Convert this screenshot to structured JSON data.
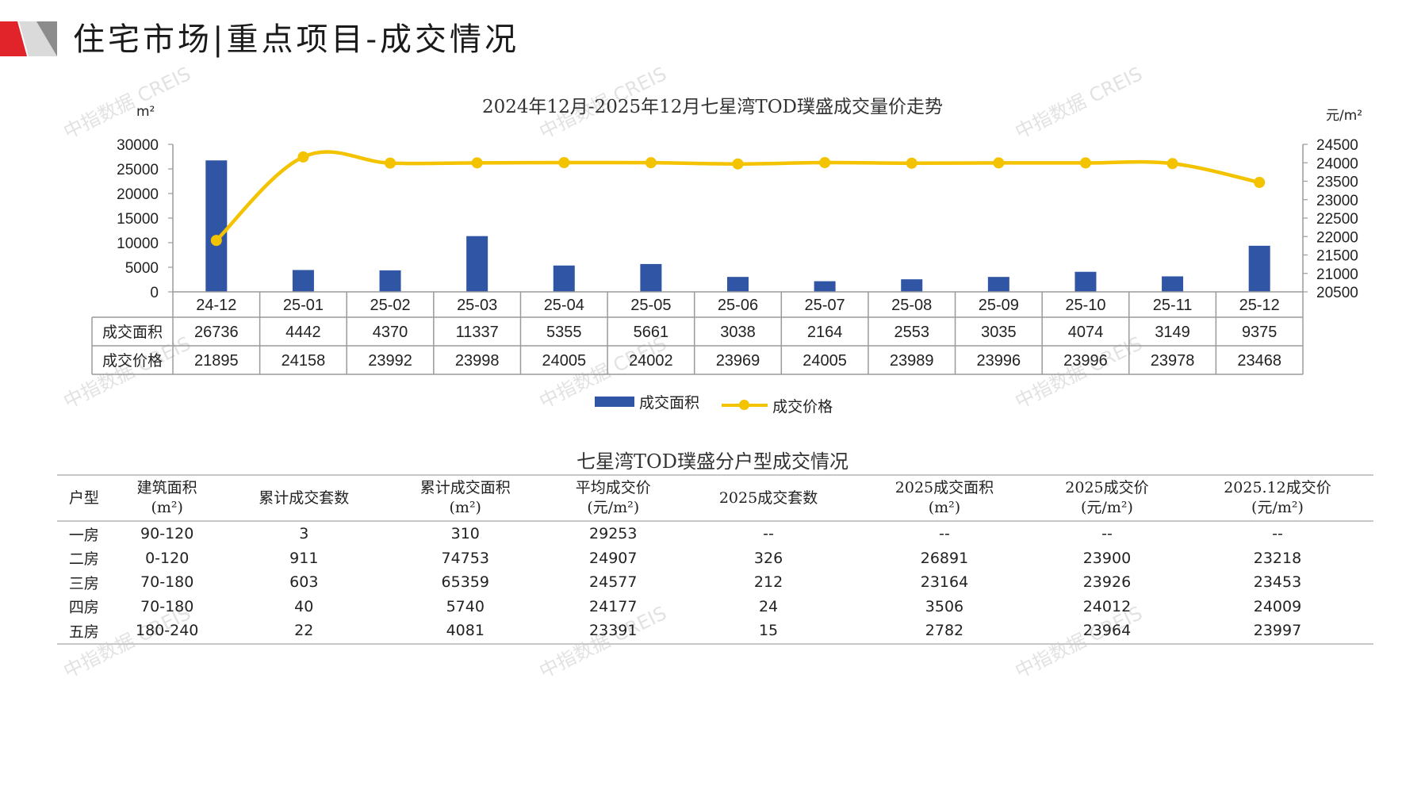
{
  "header": {
    "title": "住宅市场|重点项目-成交情况"
  },
  "watermark": "中指数据 CREIS",
  "colors": {
    "bar": "#2F55A4",
    "line": "#F4C300",
    "accent_red": "#E0242A",
    "accent_gray": "#8C8C8C"
  },
  "chart_data": {
    "type": "bar",
    "title": "2024年12月-2025年12月七星湾TOD璞盛成交量价走势",
    "categories": [
      "24-12",
      "25-01",
      "25-02",
      "25-03",
      "25-04",
      "25-05",
      "25-06",
      "25-07",
      "25-08",
      "25-09",
      "25-10",
      "25-11",
      "25-12"
    ],
    "series": [
      {
        "name": "成交面积",
        "type": "bar",
        "axis": "left",
        "values": [
          26736,
          4442,
          4370,
          11337,
          5355,
          5661,
          3038,
          2164,
          2553,
          3035,
          4074,
          3149,
          9375
        ]
      },
      {
        "name": "成交价格",
        "type": "line",
        "axis": "right",
        "values": [
          21895,
          24158,
          23992,
          23998,
          24005,
          24002,
          23969,
          24005,
          23989,
          23996,
          23996,
          23978,
          23468
        ]
      }
    ],
    "y_left": {
      "unit": "m²",
      "range": [
        0,
        30000
      ],
      "ticks": [
        "30000",
        "25000",
        "20000",
        "15000",
        "10000",
        "5000",
        "0"
      ]
    },
    "y_right": {
      "unit": "元/m²",
      "range": [
        20500,
        24500
      ],
      "ticks": [
        "24500",
        "24000",
        "23500",
        "23000",
        "22500",
        "22000",
        "21500",
        "21000",
        "20500"
      ]
    },
    "legend_position": "bottom",
    "data_table": true
  },
  "type_table": {
    "title": "七星湾TOD璞盛分户型成交情况",
    "headers": [
      [
        "户型",
        ""
      ],
      [
        "建筑面积",
        "(m²)"
      ],
      [
        "累计成交套数",
        ""
      ],
      [
        "累计成交面积",
        "(m²)"
      ],
      [
        "平均成交价",
        "(元/m²)"
      ],
      [
        "2025成交套数",
        ""
      ],
      [
        "2025成交面积",
        "(m²)"
      ],
      [
        "2025成交价",
        "(元/m²)"
      ],
      [
        "2025.12成交价",
        "(元/m²)"
      ]
    ],
    "rows": [
      [
        "一房",
        "90-120",
        "3",
        "310",
        "29253",
        "--",
        "--",
        "--",
        "--"
      ],
      [
        "二房",
        "0-120",
        "911",
        "74753",
        "24907",
        "326",
        "26891",
        "23900",
        "23218"
      ],
      [
        "三房",
        "70-180",
        "603",
        "65359",
        "24577",
        "212",
        "23164",
        "23926",
        "23453"
      ],
      [
        "四房",
        "70-180",
        "40",
        "5740",
        "24177",
        "24",
        "3506",
        "24012",
        "24009"
      ],
      [
        "五房",
        "180-240",
        "22",
        "4081",
        "23391",
        "15",
        "2782",
        "23964",
        "23997"
      ]
    ]
  }
}
